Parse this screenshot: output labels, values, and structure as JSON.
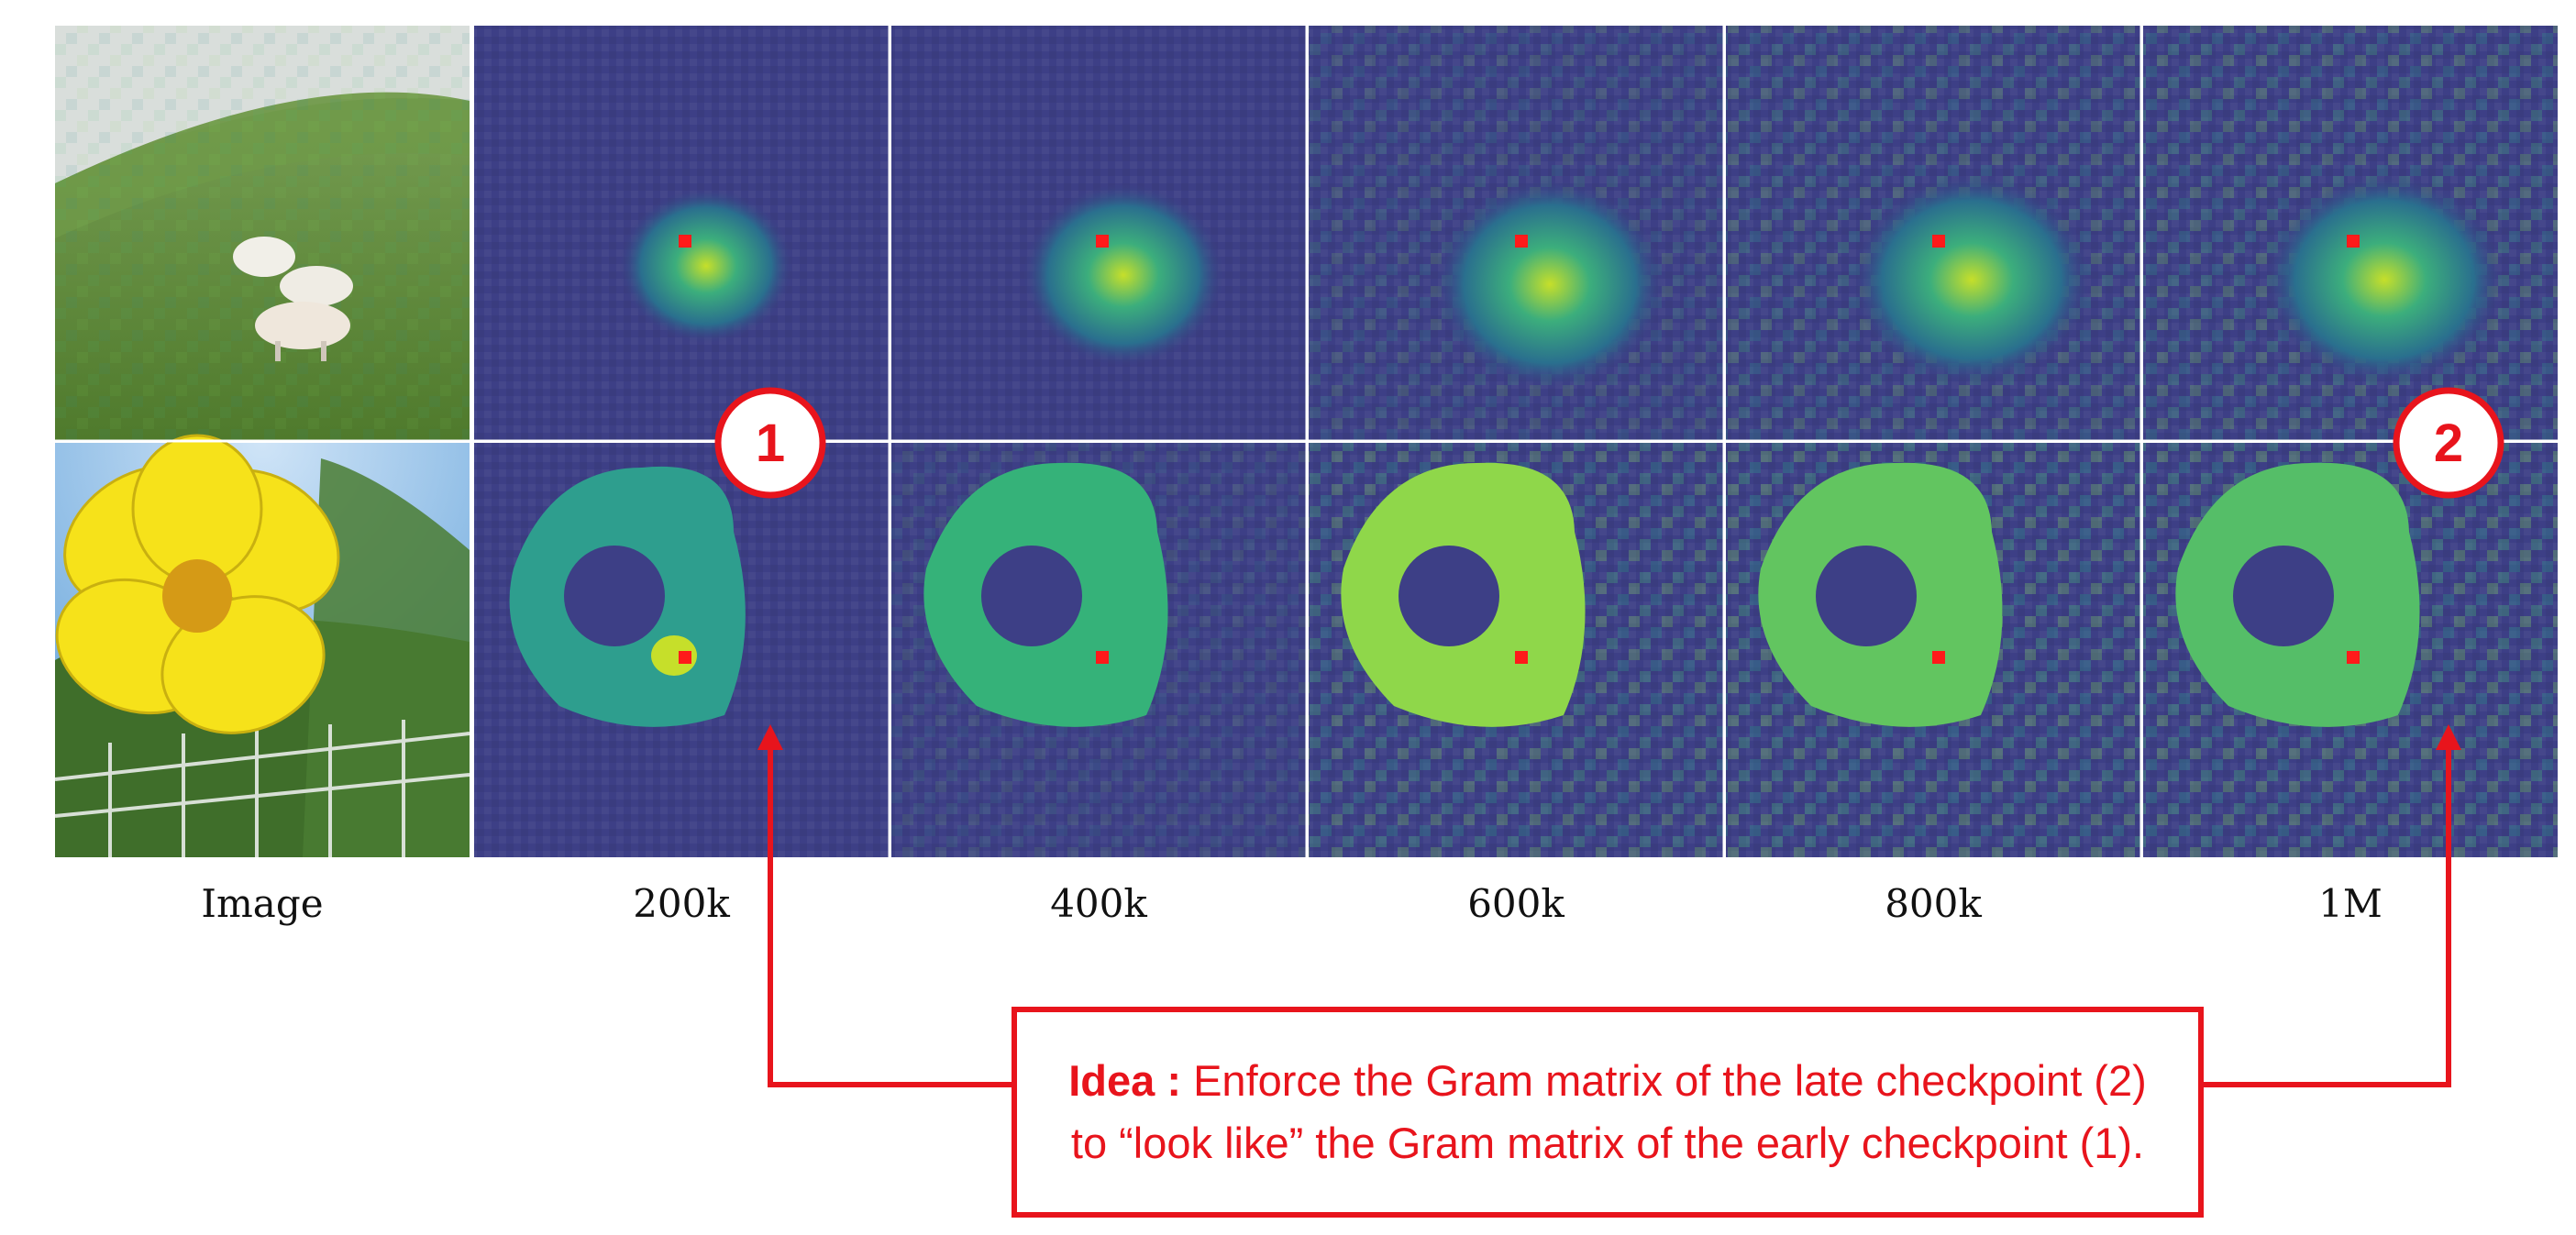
{
  "columns": [
    "Image",
    "200k",
    "400k",
    "600k",
    "800k",
    "1M"
  ],
  "badges": [
    {
      "label": "1",
      "note": "early checkpoint"
    },
    {
      "label": "2",
      "note": "late checkpoint"
    }
  ],
  "idea": {
    "title": "Idea",
    "separator": " : ",
    "text": "Enforce the Gram matrix of the late checkpoint (2) to “look like” the Gram matrix of the early checkpoint (1)."
  },
  "colors": {
    "accent_red": "#e8141c",
    "viridis_low": "#3e2a6f",
    "viridis_mid": "#22908c",
    "viridis_high": "#c8e020",
    "query_patch": "#ff1a1a"
  }
}
